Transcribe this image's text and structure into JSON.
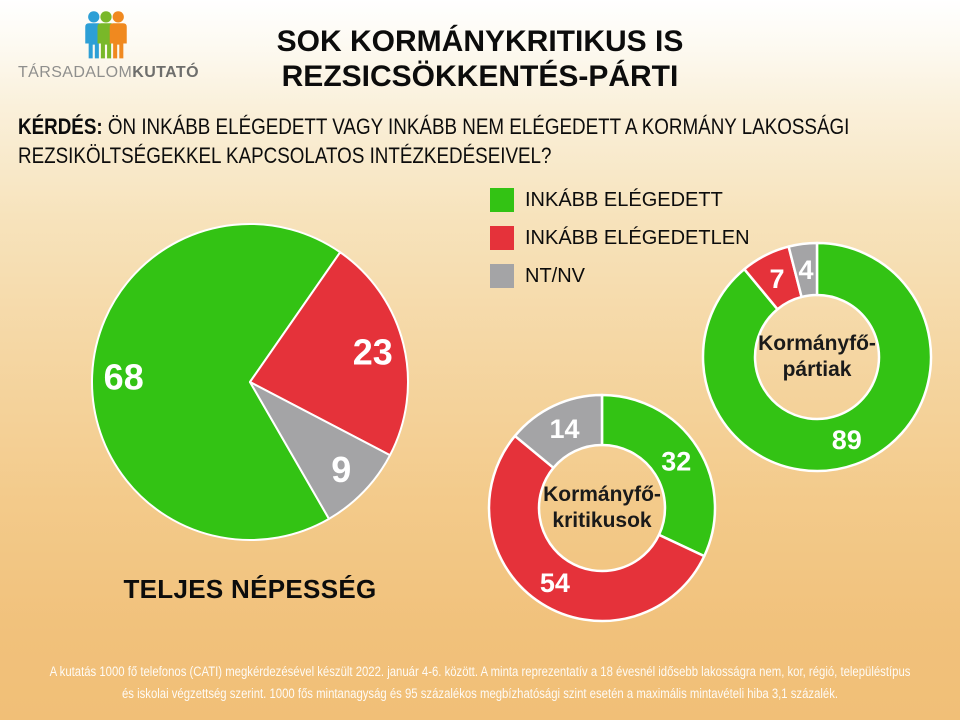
{
  "logo": {
    "text_regular": "TÁRSADALOM",
    "text_bold": "KUTATÓ"
  },
  "title": {
    "line1": "SOK KORMÁNYKRITIKUS IS",
    "line2": "REZSICSÖKKENTÉS-PÁRTI"
  },
  "question": {
    "prefix": "KÉRDÉS:",
    "line1": "ÖN INKÁBB ELÉGEDETT VAGY INKÁBB NEM ELÉGEDETT A KORMÁNY LAKOSSÁGI",
    "line2": "REZSIKÖLTSÉGEKKEL KAPCSOLATOS INTÉZKEDÉSEIVEL?"
  },
  "legend": {
    "items": [
      {
        "label": "INKÁBB ELÉGEDETT",
        "color": "#33c314"
      },
      {
        "label": "INKÁBB ELÉGEDETLEN",
        "color": "#e5323a"
      },
      {
        "label": "NT/NV",
        "color": "#a4a4a6"
      }
    ]
  },
  "chart_data": [
    {
      "type": "pie",
      "title": "TELJES NÉPESSÉG",
      "start_angle": 150,
      "value_unit": "percent",
      "series": [
        {
          "name": "INKÁBB ELÉGEDETT",
          "value": 68,
          "color": "#33c314"
        },
        {
          "name": "INKÁBB ELÉGEDETLEN",
          "value": 23,
          "color": "#e5323a"
        },
        {
          "name": "NT/NV",
          "value": 9,
          "color": "#a4a4a6"
        }
      ]
    },
    {
      "type": "donut",
      "center_label": {
        "line1": "Kormányfő-",
        "line2": "pártiak"
      },
      "start_angle": 0,
      "value_unit": "percent",
      "series": [
        {
          "name": "INKÁBB ELÉGEDETT",
          "value": 89,
          "color": "#33c314"
        },
        {
          "name": "INKÁBB ELÉGEDETLEN",
          "value": 7,
          "color": "#e5323a"
        },
        {
          "name": "NT/NV",
          "value": 4,
          "color": "#a4a4a6"
        }
      ]
    },
    {
      "type": "donut",
      "center_label": {
        "line1": "Kormányfő-",
        "line2": "kritikusok"
      },
      "start_angle": 0,
      "value_unit": "percent",
      "series": [
        {
          "name": "INKÁBB ELÉGEDETT",
          "value": 32,
          "color": "#33c314"
        },
        {
          "name": "INKÁBB ELÉGEDETLEN",
          "value": 54,
          "color": "#e5323a"
        },
        {
          "name": "NT/NV",
          "value": 14,
          "color": "#a4a4a6"
        }
      ]
    }
  ],
  "footer": {
    "line1": "A kutatás 1000 fő telefonos (CATI) megkérdezésével készült 2022. január 4-6. között. A minta reprezentatív a 18 évesnél idősebb lakosságra nem, kor, régió, településtípus",
    "line2": "és iskolai végzettség szerint. 1000 fős mintanagyság és 95 százalékos megbízhatósági szint esetén a maximális mintavételi hiba 3,1 százalék."
  },
  "colors": {
    "background_top": "#ffffff",
    "background_bottom": "#f1bf77",
    "text": "#0c0c0c",
    "value_label": "#ffffff"
  }
}
